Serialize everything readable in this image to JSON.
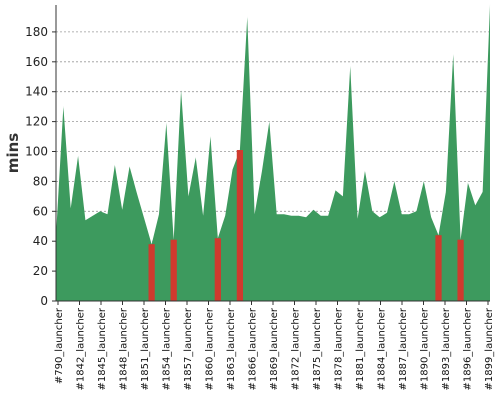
{
  "chart_data": {
    "type": "area",
    "title": "",
    "xlabel": "",
    "ylabel": "mins",
    "ylim": [
      0,
      198
    ],
    "yticks": [
      0,
      20,
      40,
      60,
      80,
      100,
      120,
      140,
      160,
      180
    ],
    "grid": true,
    "x_tick_labels": [
      "#790_launcher",
      "#1842_launcher",
      "#1845_launcher",
      "#1848_launcher",
      "#1851_launcher",
      "#1854_launcher",
      "#1857_launcher",
      "#1860_launcher",
      "#1863_launcher",
      "#1866_launcher",
      "#1869_launcher",
      "#1872_launcher",
      "#1875_launcher",
      "#1878_launcher",
      "#1881_launcher",
      "#1884_launcher",
      "#1887_launcher",
      "#1890_launcher",
      "#1893_launcher",
      "#1896_launcher",
      "#1899_launcher"
    ],
    "values": [
      44,
      130,
      62,
      97,
      54,
      57,
      60,
      58,
      91,
      61,
      90,
      72,
      55,
      38,
      58,
      119,
      41,
      141,
      70,
      96,
      57,
      110,
      42,
      57,
      88,
      101,
      190,
      58,
      87,
      120,
      58,
      58,
      57,
      57,
      56,
      61,
      57,
      57,
      74,
      70,
      157,
      55,
      87,
      60,
      56,
      59,
      80,
      58,
      58,
      60,
      80,
      56,
      44,
      73,
      165,
      41,
      79,
      64,
      73,
      198
    ],
    "failed_indices": [
      13,
      16,
      22,
      25,
      52,
      55
    ],
    "colors": {
      "area": "#3d9a5e",
      "failed": "#d03a2e",
      "grid": "#999999",
      "axis": "#333333"
    }
  }
}
